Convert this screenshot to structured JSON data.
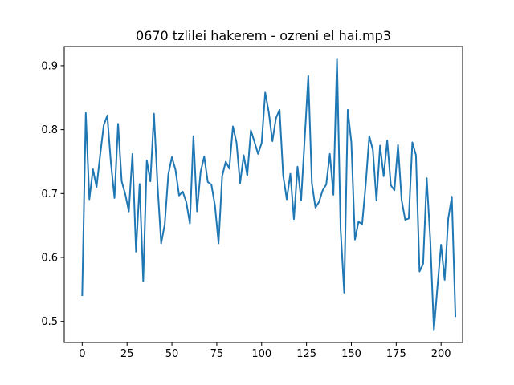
{
  "chart_data": {
    "type": "line",
    "title": "0670 tzlilei hakerem - ozreni el hai.mp3",
    "xlabel": "",
    "ylabel": "",
    "xlim": [
      -10,
      212
    ],
    "ylim": [
      0.467,
      0.93
    ],
    "xticks": [
      0,
      25,
      50,
      75,
      100,
      125,
      150,
      175,
      200
    ],
    "yticks": [
      0.5,
      0.6,
      0.7,
      0.8,
      0.9
    ],
    "x_step": 2,
    "grid": false,
    "legend": "none",
    "series": [
      {
        "color": "#1f77b4",
        "values": [
          0.541,
          0.826,
          0.691,
          0.738,
          0.71,
          0.76,
          0.807,
          0.822,
          0.748,
          0.693,
          0.809,
          0.719,
          0.699,
          0.672,
          0.762,
          0.609,
          0.715,
          0.563,
          0.752,
          0.719,
          0.825,
          0.713,
          0.622,
          0.652,
          0.73,
          0.757,
          0.737,
          0.697,
          0.703,
          0.687,
          0.653,
          0.79,
          0.672,
          0.734,
          0.758,
          0.718,
          0.714,
          0.681,
          0.622,
          0.727,
          0.75,
          0.739,
          0.805,
          0.78,
          0.716,
          0.76,
          0.728,
          0.799,
          0.781,
          0.762,
          0.779,
          0.858,
          0.827,
          0.782,
          0.818,
          0.831,
          0.728,
          0.691,
          0.731,
          0.66,
          0.742,
          0.689,
          0.786,
          0.884,
          0.716,
          0.678,
          0.687,
          0.705,
          0.714,
          0.762,
          0.698,
          0.911,
          0.645,
          0.545,
          0.831,
          0.78,
          0.628,
          0.656,
          0.652,
          0.714,
          0.79,
          0.768,
          0.689,
          0.775,
          0.727,
          0.783,
          0.713,
          0.705,
          0.776,
          0.69,
          0.659,
          0.661,
          0.78,
          0.76,
          0.578,
          0.59,
          0.724,
          0.627,
          0.486,
          0.555,
          0.62,
          0.565,
          0.661,
          0.695,
          0.508
        ]
      }
    ]
  }
}
